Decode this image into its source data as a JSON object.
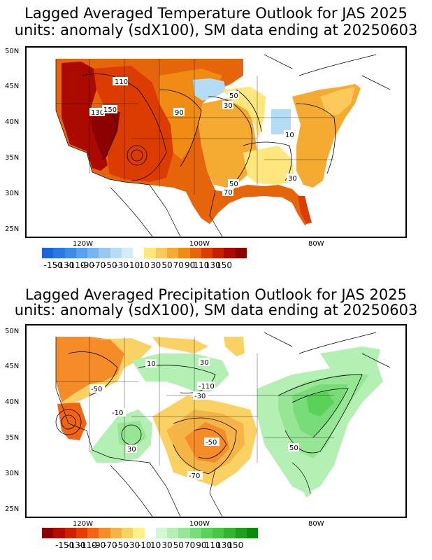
{
  "panels": [
    {
      "id": "temperature",
      "title_line1": "Lagged Averaged Temperature Outlook for JAS 2025",
      "title_line2": "units: anomaly (sdX100), SM data ending at 20250603",
      "lat_labels": [
        "50N",
        "45N",
        "40N",
        "35N",
        "30N",
        "25N"
      ],
      "lon_labels": [
        "120W",
        "100W",
        "80W"
      ],
      "contour_labels": [
        "110",
        "130",
        "150",
        "90",
        "50",
        "30",
        "10",
        "50",
        "70",
        "30"
      ],
      "legend_labels": [
        "-150",
        "-130",
        "-110",
        "-90",
        "-70",
        "-50",
        "-30",
        "-10",
        "10",
        "30",
        "50",
        "70",
        "90",
        "110",
        "130",
        "150"
      ],
      "legend_colors_negative": [
        "#1e64dc",
        "#2a78e4",
        "#3c8ce6",
        "#5aa0ec",
        "#78b4f0",
        "#96c8f2",
        "#b4dcf6",
        "#d2eefa"
      ],
      "legend_colors_positive": [
        "#ffe67d",
        "#fbc85a",
        "#f5aa32",
        "#f08c14",
        "#e6640a",
        "#dc3c00",
        "#c81e00",
        "#aa0a00",
        "#8c0000"
      ]
    },
    {
      "id": "precipitation",
      "title_line1": "Lagged Averaged Precipitation Outlook for JAS 2025",
      "title_line2": "units: anomaly (sdX100), SM data ending at 20250603",
      "lat_labels": [
        "50N",
        "45N",
        "40N",
        "35N",
        "30N",
        "25N"
      ],
      "lon_labels": [
        "120W",
        "100W",
        "80W"
      ],
      "contour_labels": [
        "10",
        "30",
        "-50",
        "-110",
        "-30",
        "-10",
        "30",
        "-50",
        "-70",
        "50"
      ],
      "legend_labels": [
        "-150",
        "-130",
        "-110",
        "-90",
        "-70",
        "-50",
        "-30",
        "-10",
        "10",
        "30",
        "50",
        "70",
        "90",
        "110",
        "130",
        "150"
      ],
      "legend_colors_negative": [
        "#8c0000",
        "#b40a00",
        "#d21e00",
        "#e63c00",
        "#f06414",
        "#f58c28",
        "#f5b446",
        "#fad264",
        "#fff08c"
      ],
      "legend_colors_positive": [
        "#d2fad2",
        "#b4f0b4",
        "#96e696",
        "#78dc78",
        "#5ad25a",
        "#46c846",
        "#32b432",
        "#1ea01e",
        "#0a8c0a"
      ]
    }
  ]
}
